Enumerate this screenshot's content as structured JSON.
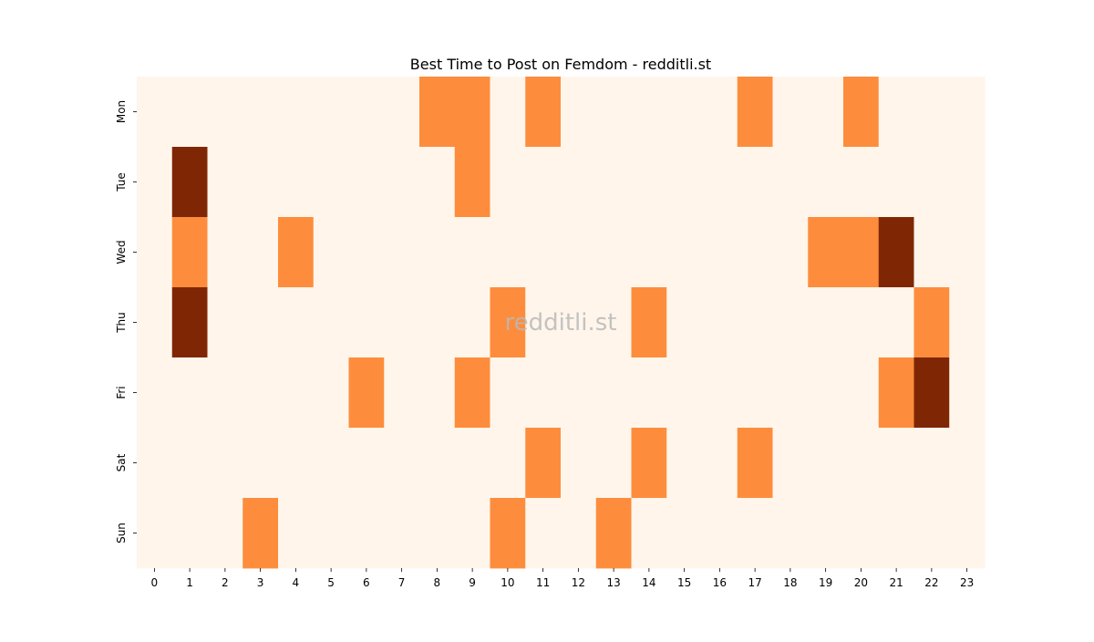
{
  "chart_data": {
    "type": "heatmap",
    "title": "Best Time to Post on Femdom - redditli.st",
    "xlabel": "",
    "ylabel": "",
    "watermark": "redditli.st",
    "x_categories": [
      "0",
      "1",
      "2",
      "3",
      "4",
      "5",
      "6",
      "7",
      "8",
      "9",
      "10",
      "11",
      "12",
      "13",
      "14",
      "15",
      "16",
      "17",
      "18",
      "19",
      "20",
      "21",
      "22",
      "23"
    ],
    "y_categories": [
      "Mon",
      "Tue",
      "Wed",
      "Thu",
      "Fri",
      "Sat",
      "Sun"
    ],
    "values": [
      [
        0,
        0,
        0,
        0,
        0,
        0,
        0,
        0,
        1,
        1,
        0,
        1,
        0,
        0,
        0,
        0,
        0,
        1,
        0,
        0,
        1,
        0,
        0,
        0
      ],
      [
        0,
        2,
        0,
        0,
        0,
        0,
        0,
        0,
        0,
        1,
        0,
        0,
        0,
        0,
        0,
        0,
        0,
        0,
        0,
        0,
        0,
        0,
        0,
        0
      ],
      [
        0,
        1,
        0,
        0,
        1,
        0,
        0,
        0,
        0,
        0,
        0,
        0,
        0,
        0,
        0,
        0,
        0,
        0,
        0,
        1,
        1,
        2,
        0,
        0
      ],
      [
        0,
        2,
        0,
        0,
        0,
        0,
        0,
        0,
        0,
        0,
        1,
        0,
        0,
        0,
        1,
        0,
        0,
        0,
        0,
        0,
        0,
        0,
        1,
        0
      ],
      [
        0,
        0,
        0,
        0,
        0,
        0,
        1,
        0,
        0,
        1,
        0,
        0,
        0,
        0,
        0,
        0,
        0,
        0,
        0,
        0,
        0,
        1,
        2,
        0
      ],
      [
        0,
        0,
        0,
        0,
        0,
        0,
        0,
        0,
        0,
        0,
        0,
        1,
        0,
        0,
        1,
        0,
        0,
        1,
        0,
        0,
        0,
        0,
        0,
        0
      ],
      [
        0,
        0,
        0,
        1,
        0,
        0,
        0,
        0,
        0,
        0,
        1,
        0,
        0,
        1,
        0,
        0,
        0,
        0,
        0,
        0,
        0,
        0,
        0,
        0
      ]
    ],
    "colors": [
      "#fff5eb",
      "#fd8d3c",
      "#7f2704"
    ],
    "colormap": "Oranges",
    "grid": false,
    "legend": "none"
  }
}
